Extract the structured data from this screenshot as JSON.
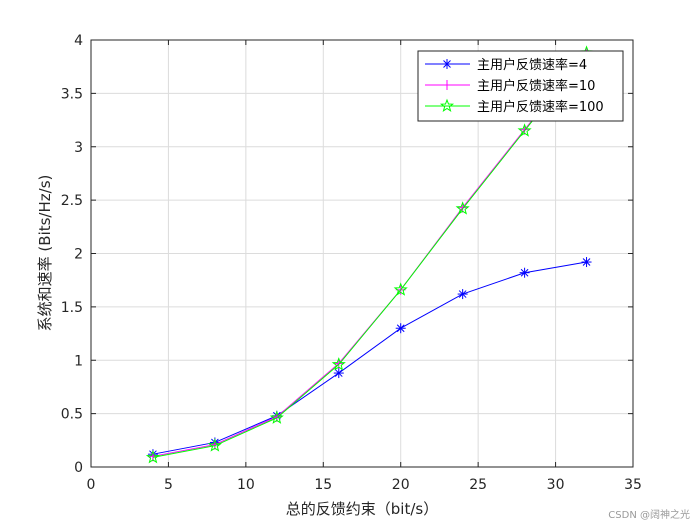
{
  "chart_data": {
    "type": "line",
    "xlabel": "总的反馈约束（bit/s）",
    "ylabel": "系统和速率 (Bits/Hz/s)",
    "xlim": [
      0,
      35
    ],
    "ylim": [
      0,
      4
    ],
    "xticks": [
      0,
      5,
      10,
      15,
      20,
      25,
      30,
      35
    ],
    "yticks": [
      0,
      0.5,
      1,
      1.5,
      2,
      2.5,
      3,
      3.5,
      4
    ],
    "grid": true,
    "legend_position": "top-right",
    "series": [
      {
        "name": "主用户反馈速率=4",
        "color": "#0000ff",
        "marker": "asterisk",
        "x": [
          4,
          8,
          12,
          16,
          20,
          24,
          28,
          32
        ],
        "y": [
          0.12,
          0.23,
          0.48,
          0.88,
          1.3,
          1.62,
          1.82,
          1.92
        ]
      },
      {
        "name": "主用户反馈速率=10",
        "color": "#ff00ff",
        "marker": "plus",
        "x": [
          4,
          8,
          12,
          16,
          20,
          24,
          28,
          32
        ],
        "y": [
          0.1,
          0.21,
          0.47,
          0.97,
          1.66,
          2.43,
          3.16,
          3.88
        ]
      },
      {
        "name": "主用户反馈速率=100",
        "color": "#00ff00",
        "marker": "pentagram",
        "x": [
          4,
          8,
          12,
          16,
          20,
          24,
          28,
          32
        ],
        "y": [
          0.09,
          0.2,
          0.46,
          0.96,
          1.66,
          2.42,
          3.15,
          3.88
        ]
      }
    ]
  },
  "watermark": "CSDN @阔神之光"
}
